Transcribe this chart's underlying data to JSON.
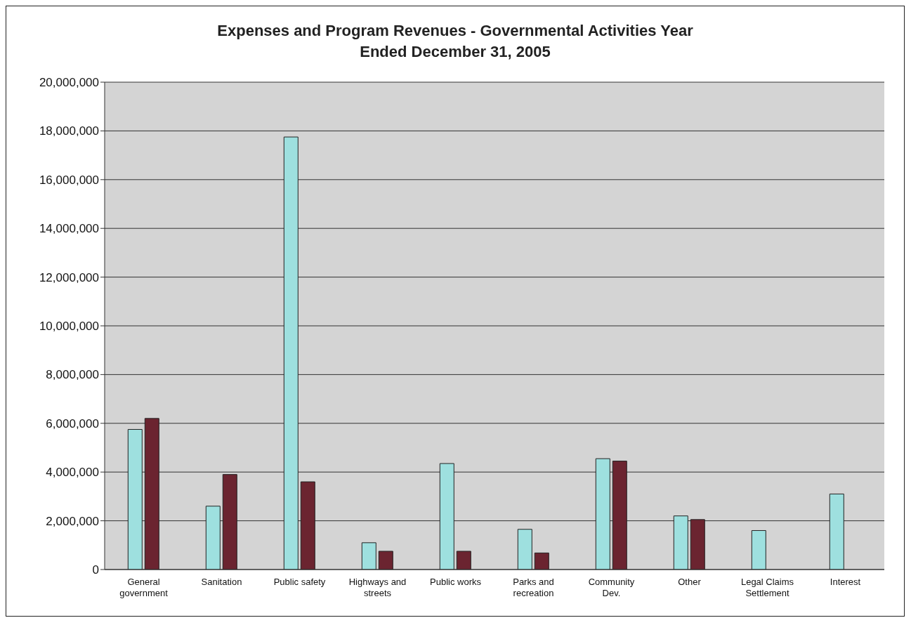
{
  "chart_data": {
    "type": "bar",
    "title": "Expenses and Program Revenues - Governmental Activities Year\nEnded December 31, 2005",
    "categories": [
      "General government",
      "Sanitation",
      "Public safety",
      "Highways and streets",
      "Public works",
      "Parks and recreation",
      "Community Dev.",
      "Other",
      "Legal Claims Settlement",
      "Interest"
    ],
    "series": [
      {
        "color": "#9ee0df",
        "values": [
          5750000,
          2600000,
          17750000,
          1100000,
          4350000,
          1650000,
          4550000,
          2200000,
          1600000,
          3100000
        ]
      },
      {
        "color": "#6b2430",
        "values": [
          6200000,
          3900000,
          3600000,
          750000,
          750000,
          680000,
          4450000,
          2050000,
          null,
          null
        ]
      }
    ],
    "ylim": [
      0,
      20000000
    ],
    "yticks": [
      0,
      {
        "value": 2000000,
        "label": "2,000,000"
      },
      {
        "value": 4000000,
        "label": "4,000,000"
      },
      {
        "value": 6000000,
        "label": "6,000,000"
      },
      {
        "value": 8000000,
        "label": "8,000,000"
      },
      {
        "value": 10000000,
        "label": "10,000,000"
      },
      {
        "value": 12000000,
        "label": "12,000,000"
      },
      {
        "value": 14000000,
        "label": "14,000,000"
      },
      {
        "value": 16000000,
        "label": "16,000,000"
      },
      {
        "value": 18000000,
        "label": "18,000,000"
      },
      {
        "value": 20000000,
        "label": "20,000,000"
      }
    ],
    "grid": "y",
    "legend": false
  }
}
